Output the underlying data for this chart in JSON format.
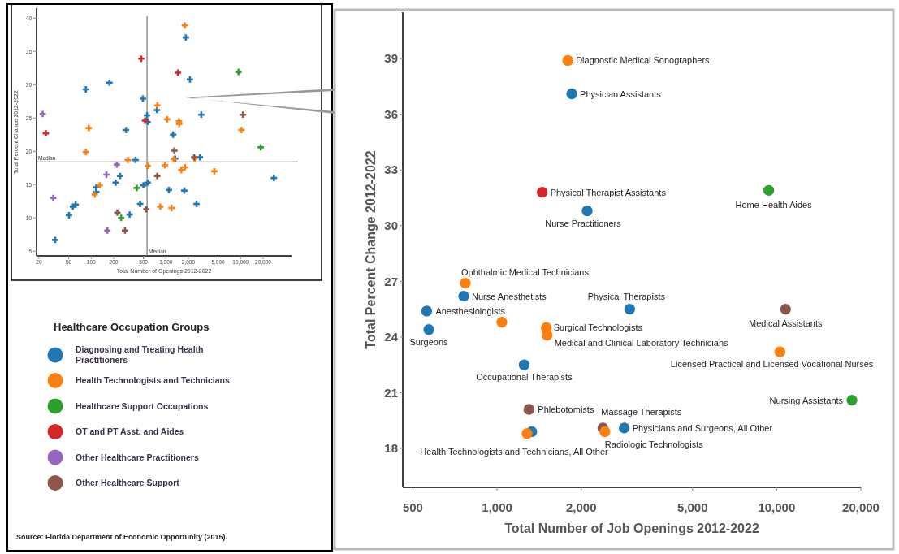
{
  "chart_data": [
    {
      "type": "scatter",
      "xlabel": "Total Number of Openings 2012-2022",
      "ylabel": "Total Percent Change 2012-2022",
      "log": "x",
      "marker": "cross",
      "legend": "bottom",
      "legend_title": "Healthcare Occupation Groups",
      "xlim": [
        18.6,
        48000
      ],
      "ylim": [
        4.3,
        41.5
      ],
      "xticks": [
        20,
        50,
        100,
        200,
        500,
        {
          "value": 1000,
          "label": "1,000"
        },
        {
          "value": 2000,
          "label": "2,000"
        },
        {
          "value": 5000,
          "label": "5,000"
        },
        {
          "value": 10000,
          "label": "10,000"
        },
        {
          "value": 20000,
          "label": "20,000"
        }
      ],
      "yticks": [
        5,
        10,
        15,
        20,
        25,
        30,
        35,
        40
      ],
      "ref_lines": [
        {
          "axis": "y",
          "value": 18.4,
          "label": "Median"
        },
        {
          "axis": "x",
          "value": 560,
          "label": "Median"
        }
      ],
      "series": [
        {
          "name": "Diagnosing and Treating Health Practitioners",
          "color": "#1f77b4",
          "x": [
            1850,
            2100,
            760,
            2980,
            560,
            570,
            1250,
            2850,
            1330,
            33,
            50.5,
            57,
            62,
            85,
            117,
            117,
            176,
            213,
            244,
            293,
            327,
            393,
            453,
            501,
            492,
            572,
            1097,
            1765,
            2570,
            27900
          ],
          "values": [
            37.1,
            30.8,
            26.2,
            25.5,
            25.4,
            24.4,
            22.5,
            19.1,
            18.9,
            6.7,
            10.4,
            11.7,
            12.0,
            29.3,
            13.9,
            14.6,
            30.3,
            15.3,
            16.3,
            23.2,
            10.5,
            18.7,
            12.1,
            14.9,
            27.9,
            15.3,
            14.2,
            14.1,
            12.1,
            16.0
          ]
        },
        {
          "name": "Health Technologists and Technicians",
          "color": "#ff7f0e",
          "x": [
            1790,
            770,
            1040,
            1500,
            1510,
            10270,
            2430,
            1280,
            85,
            93,
            112,
            130,
            311,
            572,
            840,
            975,
            1610,
            1800,
            4460,
            1190
          ],
          "values": [
            38.9,
            26.9,
            24.8,
            24.5,
            24.1,
            23.2,
            18.9,
            18.8,
            19.9,
            23.5,
            13.5,
            14.9,
            18.7,
            17.8,
            11.7,
            17.9,
            17.2,
            17.6,
            17.0,
            11.5
          ]
        },
        {
          "name": "Healthcare Support Occupations",
          "color": "#2ca02c",
          "x": [
            9370,
            18590,
            252,
            409
          ],
          "values": [
            31.9,
            20.6,
            10.0,
            14.5
          ]
        },
        {
          "name": "OT and PT Asst. and Aides",
          "color": "#d62728",
          "x": [
            1450,
            24.8,
            469,
            527
          ],
          "values": [
            31.8,
            22.7,
            33.9,
            24.6
          ]
        },
        {
          "name": "Other Healthcare Practitioners",
          "color": "#9467bd",
          "x": [
            22.5,
            31.1,
            160,
            165,
            221
          ],
          "values": [
            25.6,
            13.0,
            16.5,
            8.1,
            18.0
          ]
        },
        {
          "name": "Other Healthcare Support",
          "color": "#8c564b",
          "x": [
            10760,
            1300,
            2390,
            224,
            284,
            548,
            767
          ],
          "values": [
            25.5,
            20.1,
            19.1,
            10.8,
            8.1,
            11.3,
            16.3
          ]
        }
      ],
      "annotations": [
        "Source: Florida Department of Economic Opportunity (2015)."
      ]
    },
    {
      "type": "scatter",
      "xlabel": "Total Number of Job Openings 2012-2022",
      "ylabel": "Total Percent Change 2012-2022",
      "log": "x",
      "marker": "circle",
      "xlim": [
        460,
        20000
      ],
      "ylim": [
        15.9,
        41.5
      ],
      "xticks": [
        500,
        {
          "value": 1000,
          "label": "1,000"
        },
        {
          "value": 2000,
          "label": "2,000"
        },
        {
          "value": 5000,
          "label": "5,000"
        },
        {
          "value": 10000,
          "label": "10,000"
        },
        {
          "value": 20000,
          "label": "20,000"
        }
      ],
      "yticks": [
        18,
        21,
        24,
        27,
        30,
        33,
        36,
        39
      ],
      "series": [
        {
          "color": "#8c564b",
          "x": [
            10760,
            1300,
            2390
          ],
          "values": [
            25.5,
            20.1,
            19.1
          ]
        },
        {
          "color": "#1f77b4",
          "x": [
            1850,
            2100,
            760,
            2980,
            560,
            570,
            1250,
            2850,
            1330
          ],
          "values": [
            37.1,
            30.8,
            26.2,
            25.5,
            25.4,
            24.4,
            22.5,
            19.1,
            18.9
          ]
        },
        {
          "color": "#ff7f0e",
          "x": [
            1790,
            770,
            1040,
            1500,
            1510,
            10270,
            2430,
            1280
          ],
          "values": [
            38.9,
            26.9,
            24.8,
            24.5,
            24.1,
            23.2,
            18.9,
            18.8
          ]
        },
        {
          "color": "#2ca02c",
          "x": [
            9370,
            18590
          ],
          "values": [
            31.9,
            20.6
          ]
        },
        {
          "color": "#d62728",
          "x": [
            1450
          ],
          "values": [
            31.8
          ]
        }
      ],
      "annotations": [
        {
          "text": "Diagnostic Medical Sonographers",
          "x": 1790,
          "y": 38.9
        },
        {
          "text": "Physician Assistants",
          "x": 1850,
          "y": 37.1
        },
        {
          "text": "Physical Therapist Assistants",
          "x": 1450,
          "y": 31.8
        },
        {
          "text": "Nurse Practitioners",
          "x": 2100,
          "y": 30.8
        },
        {
          "text": "Home Health Aides",
          "x": 9370,
          "y": 31.9
        },
        {
          "text": "Ophthalmic Medical Technicians",
          "x": 770,
          "y": 26.9
        },
        {
          "text": "Nurse Anesthetists",
          "x": 760,
          "y": 26.2
        },
        {
          "text": "Physical Therapists",
          "x": 2980,
          "y": 25.5
        },
        {
          "text": "Anesthesiologists",
          "x": 560,
          "y": 25.4
        },
        {
          "text": "Surgeons",
          "x": 570,
          "y": 24.4
        },
        {
          "text": "Surgical Technologists",
          "x": 1500,
          "y": 24.5
        },
        {
          "text": "Medical and Clinical Laboratory Technicians",
          "x": 1510,
          "y": 24.1
        },
        {
          "text": "Medical Assistants",
          "x": 10760,
          "y": 25.5
        },
        {
          "text": "Licensed Practical and Licensed Vocational Nurses",
          "x": 10270,
          "y": 23.2
        },
        {
          "text": "Occupational Therapists",
          "x": 1250,
          "y": 22.5
        },
        {
          "text": "Nursing Assistants",
          "x": 18590,
          "y": 20.6
        },
        {
          "text": "Phlebotomists",
          "x": 1300,
          "y": 20.1
        },
        {
          "text": "Massage Therapists",
          "x": 2390,
          "y": 19.1
        },
        {
          "text": "Physicians and Surgeons, All Other",
          "x": 2850,
          "y": 19.1
        },
        {
          "text": "Radiologic Technologists",
          "x": 2430,
          "y": 18.9
        },
        {
          "text": "Health Technologists and Technicians, All Other",
          "x": 1280,
          "y": 18.8
        }
      ]
    }
  ]
}
